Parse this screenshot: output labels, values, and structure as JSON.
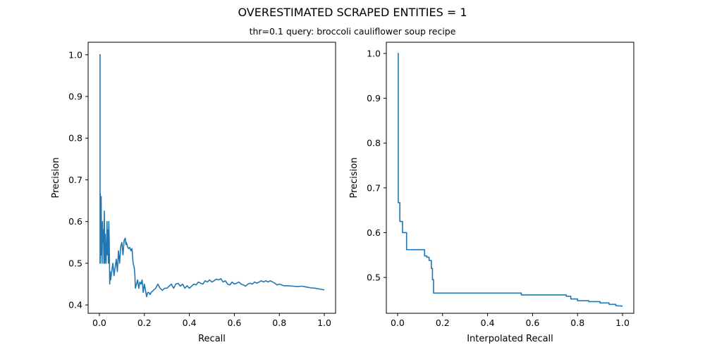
{
  "figure": {
    "suptitle": "OVERESTIMATED SCRAPED ENTITIES = 1",
    "subtitle": "thr=0.1    query: broccoli cauliflower soup recipe"
  },
  "colors": {
    "series": "#1f77b4",
    "axes": "#000000",
    "background": "#ffffff"
  },
  "chart_data": [
    {
      "type": "line",
      "xlabel": "Recall",
      "ylabel": "Precision",
      "xlim": [
        -0.05,
        1.05
      ],
      "ylim": [
        0.38,
        1.03
      ],
      "xticks": [
        "0.0",
        "0.2",
        "0.4",
        "0.6",
        "0.8",
        "1.0"
      ],
      "yticks": [
        "0.4",
        "0.5",
        "0.6",
        "0.7",
        "0.8",
        "0.9",
        "1.0"
      ],
      "grid": false,
      "series": [
        {
          "x": [
            0.0,
            0.003,
            0.003,
            0.004,
            0.004,
            0.006,
            0.007,
            0.008,
            0.009,
            0.01,
            0.012,
            0.014,
            0.016,
            0.018,
            0.02,
            0.022,
            0.024,
            0.026,
            0.028,
            0.03,
            0.032,
            0.034,
            0.036,
            0.038,
            0.04,
            0.042,
            0.044,
            0.046,
            0.048,
            0.05,
            0.055,
            0.06,
            0.065,
            0.07,
            0.075,
            0.08,
            0.085,
            0.09,
            0.095,
            0.1,
            0.105,
            0.11,
            0.115,
            0.118,
            0.12,
            0.125,
            0.13,
            0.135,
            0.14,
            0.145,
            0.15,
            0.155,
            0.158,
            0.16,
            0.165,
            0.17,
            0.175,
            0.18,
            0.185,
            0.19,
            0.195,
            0.2,
            0.205,
            0.21,
            0.215,
            0.22,
            0.225,
            0.23,
            0.24,
            0.25,
            0.26,
            0.27,
            0.28,
            0.29,
            0.3,
            0.31,
            0.32,
            0.33,
            0.34,
            0.35,
            0.36,
            0.37,
            0.38,
            0.39,
            0.4,
            0.41,
            0.42,
            0.43,
            0.44,
            0.45,
            0.46,
            0.47,
            0.48,
            0.49,
            0.5,
            0.51,
            0.52,
            0.53,
            0.54,
            0.55,
            0.56,
            0.57,
            0.58,
            0.59,
            0.6,
            0.61,
            0.62,
            0.63,
            0.64,
            0.65,
            0.66,
            0.67,
            0.68,
            0.69,
            0.7,
            0.71,
            0.72,
            0.73,
            0.74,
            0.75,
            0.76,
            0.77,
            0.78,
            0.79,
            0.8,
            0.82,
            0.84,
            0.86,
            0.88,
            0.9,
            0.92,
            0.94,
            0.96,
            0.98,
            0.99,
            1.0
          ],
          "y": [
            1.0,
            1.0,
            0.5,
            0.667,
            0.5,
            0.6,
            0.52,
            0.66,
            0.56,
            0.55,
            0.5,
            0.6,
            0.55,
            0.58,
            0.5,
            0.625,
            0.5,
            0.57,
            0.52,
            0.5,
            0.55,
            0.6,
            0.52,
            0.58,
            0.5,
            0.6,
            0.55,
            0.45,
            0.48,
            0.46,
            0.48,
            0.5,
            0.47,
            0.49,
            0.51,
            0.48,
            0.53,
            0.5,
            0.54,
            0.55,
            0.52,
            0.555,
            0.56,
            0.545,
            0.55,
            0.54,
            0.535,
            0.538,
            0.53,
            0.535,
            0.5,
            0.49,
            0.47,
            0.44,
            0.45,
            0.46,
            0.44,
            0.455,
            0.45,
            0.46,
            0.43,
            0.45,
            0.435,
            0.42,
            0.43,
            0.43,
            0.425,
            0.43,
            0.435,
            0.44,
            0.45,
            0.44,
            0.435,
            0.44,
            0.44,
            0.445,
            0.45,
            0.44,
            0.45,
            0.452,
            0.445,
            0.45,
            0.44,
            0.446,
            0.44,
            0.445,
            0.45,
            0.448,
            0.455,
            0.452,
            0.45,
            0.458,
            0.455,
            0.46,
            0.455,
            0.458,
            0.462,
            0.46,
            0.463,
            0.455,
            0.458,
            0.45,
            0.448,
            0.455,
            0.45,
            0.452,
            0.455,
            0.45,
            0.448,
            0.445,
            0.45,
            0.452,
            0.45,
            0.455,
            0.452,
            0.455,
            0.458,
            0.455,
            0.458,
            0.455,
            0.458,
            0.455,
            0.452,
            0.448,
            0.45,
            0.446,
            0.446,
            0.445,
            0.444,
            0.445,
            0.443,
            0.441,
            0.44,
            0.438,
            0.437,
            0.436
          ]
        }
      ]
    },
    {
      "type": "line",
      "xlabel": "Interpolated Recall",
      "ylabel": "Precision",
      "xlim": [
        -0.05,
        1.05
      ],
      "ylim": [
        0.42,
        1.025
      ],
      "xticks": [
        "0.0",
        "0.2",
        "0.4",
        "0.6",
        "0.8",
        "1.0"
      ],
      "yticks": [
        "0.5",
        "0.6",
        "0.7",
        "0.8",
        "0.9",
        "1.0"
      ],
      "grid": false,
      "series": [
        {
          "x": [
            0.0,
            0.003,
            0.003,
            0.01,
            0.01,
            0.022,
            0.022,
            0.04,
            0.04,
            0.12,
            0.12,
            0.13,
            0.13,
            0.14,
            0.14,
            0.15,
            0.15,
            0.155,
            0.155,
            0.16,
            0.16,
            0.55,
            0.55,
            0.75,
            0.75,
            0.77,
            0.77,
            0.8,
            0.8,
            0.85,
            0.85,
            0.9,
            0.9,
            0.94,
            0.94,
            0.97,
            0.97,
            1.0
          ],
          "y": [
            1.0,
            1.0,
            0.667,
            0.667,
            0.625,
            0.625,
            0.6,
            0.6,
            0.562,
            0.562,
            0.548,
            0.548,
            0.545,
            0.545,
            0.538,
            0.538,
            0.52,
            0.52,
            0.495,
            0.495,
            0.465,
            0.465,
            0.461,
            0.461,
            0.458,
            0.458,
            0.452,
            0.452,
            0.448,
            0.448,
            0.446,
            0.446,
            0.443,
            0.443,
            0.44,
            0.44,
            0.437,
            0.436
          ]
        }
      ]
    }
  ]
}
